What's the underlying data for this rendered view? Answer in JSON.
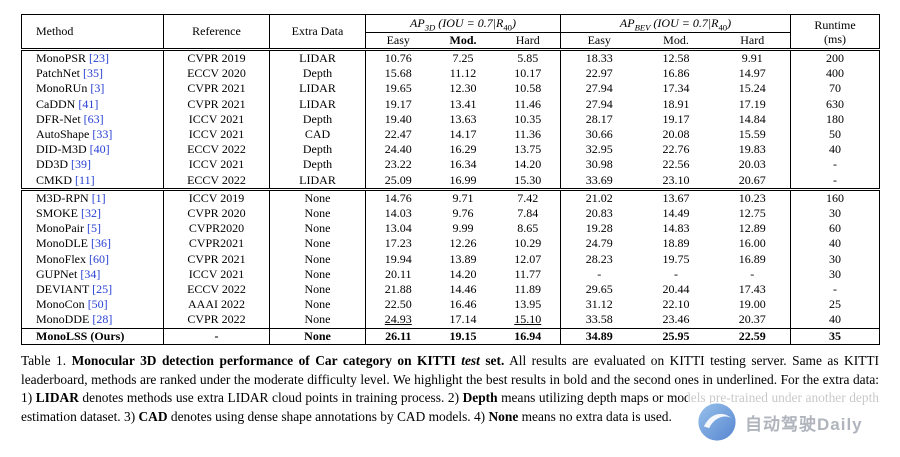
{
  "table": {
    "headers": {
      "method": "Method",
      "reference": "Reference",
      "extra_data": "Extra Data",
      "ap3d": {
        "name": "AP",
        "sub": "3D",
        "cond": " (IOU = 0.7|R",
        "cond_sub": "40",
        "close": ")"
      },
      "apbev": {
        "name": "AP",
        "sub": "BEV",
        "cond": " (IOU = 0.7|R",
        "cond_sub": "40",
        "close": ")"
      },
      "runtime_line1": "Runtime",
      "runtime_line2": "(ms)",
      "easy1": "Easy",
      "mod1": "Mod.",
      "hard1": "Hard",
      "easy2": "Easy",
      "mod2": "Mod.",
      "hard2": "Hard"
    },
    "rows": [
      {
        "m": "MonoPSR",
        "c": "[23]",
        "ref": "CVPR 2019",
        "ex": "LIDAR",
        "v": [
          "10.76",
          "7.25",
          "5.85",
          "18.33",
          "12.58",
          "9.91"
        ],
        "rt": "200"
      },
      {
        "m": "PatchNet",
        "c": "[35]",
        "ref": "ECCV 2020",
        "ex": "Depth",
        "v": [
          "15.68",
          "11.12",
          "10.17",
          "22.97",
          "16.86",
          "14.97"
        ],
        "rt": "400"
      },
      {
        "m": "MonoRUn",
        "c": "[3]",
        "ref": "CVPR 2021",
        "ex": "LIDAR",
        "v": [
          "19.65",
          "12.30",
          "10.58",
          "27.94",
          "17.34",
          "15.24"
        ],
        "rt": "70"
      },
      {
        "m": "CaDDN",
        "c": "[41]",
        "ref": "CVPR 2021",
        "ex": "LIDAR",
        "v": [
          "19.17",
          "13.41",
          "11.46",
          "27.94",
          "18.91",
          "17.19"
        ],
        "rt": "630"
      },
      {
        "m": "DFR-Net",
        "c": "[63]",
        "ref": "ICCV 2021",
        "ex": "Depth",
        "v": [
          "19.40",
          "13.63",
          "10.35",
          "28.17",
          "19.17",
          "14.84"
        ],
        "rt": "180"
      },
      {
        "m": "AutoShape",
        "c": "[33]",
        "ref": "ICCV 2021",
        "ex": "CAD",
        "v": [
          "22.47",
          "14.17",
          "11.36",
          "30.66",
          "20.08",
          "15.59"
        ],
        "rt": "50"
      },
      {
        "m": "DID-M3D",
        "c": "[40]",
        "ref": "ECCV 2022",
        "ex": "Depth",
        "v": [
          "24.40",
          "16.29",
          "13.75",
          "32.95",
          "22.76",
          "19.83"
        ],
        "rt": "40"
      },
      {
        "m": "DD3D",
        "c": "[39]",
        "ref": "ICCV 2021",
        "ex": "Depth",
        "v": [
          "23.22",
          "16.34",
          "14.20",
          "30.98",
          "22.56",
          "20.03"
        ],
        "rt": "-"
      },
      {
        "m": "CMKD",
        "c": "[11]",
        "ref": "ECCV 2022",
        "ex": "LIDAR",
        "v": [
          "25.09",
          "16.99",
          "15.30",
          "33.69",
          "23.10",
          "20.67"
        ],
        "rt": "-"
      },
      {
        "m": "M3D-RPN",
        "c": "[1]",
        "ref": "ICCV 2019",
        "ex": "None",
        "v": [
          "14.76",
          "9.71",
          "7.42",
          "21.02",
          "13.67",
          "10.23"
        ],
        "rt": "160",
        "sep": "double"
      },
      {
        "m": "SMOKE",
        "c": "[32]",
        "ref": "CVPR 2020",
        "ex": "None",
        "v": [
          "14.03",
          "9.76",
          "7.84",
          "20.83",
          "14.49",
          "12.75"
        ],
        "rt": "30"
      },
      {
        "m": "MonoPair",
        "c": "[5]",
        "ref": "CVPR2020",
        "ex": "None",
        "v": [
          "13.04",
          "9.99",
          "8.65",
          "19.28",
          "14.83",
          "12.89"
        ],
        "rt": "60"
      },
      {
        "m": "MonoDLE",
        "c": "[36]",
        "ref": "CVPR2021",
        "ex": "None",
        "v": [
          "17.23",
          "12.26",
          "10.29",
          "24.79",
          "18.89",
          "16.00"
        ],
        "rt": "40"
      },
      {
        "m": "MonoFlex",
        "c": "[60]",
        "ref": "CVPR 2021",
        "ex": "None",
        "v": [
          "19.94",
          "13.89",
          "12.07",
          "28.23",
          "19.75",
          "16.89"
        ],
        "rt": "30"
      },
      {
        "m": "GUPNet",
        "c": "[34]",
        "ref": "ICCV 2021",
        "ex": "None",
        "v": [
          "20.11",
          "14.20",
          "11.77",
          "-",
          "-",
          "-"
        ],
        "rt": "30"
      },
      {
        "m": "DEVIANT",
        "c": "[25]",
        "ref": "ECCV 2022",
        "ex": "None",
        "v": [
          "21.88",
          "14.46",
          "11.89",
          "29.65",
          "20.44",
          "17.43"
        ],
        "rt": "-"
      },
      {
        "m": "MonoCon",
        "c": "[50]",
        "ref": "AAAI 2022",
        "ex": "None",
        "v": [
          "22.50",
          "16.46",
          "13.95",
          "31.12",
          "22.10",
          "19.00"
        ],
        "rt": "25"
      },
      {
        "m": "MonoDDE",
        "c": "[28]",
        "ref": "CVPR 2022",
        "ex": "None",
        "v": [
          "24.93",
          "17.14",
          "15.10",
          "33.58",
          "23.46",
          "20.37"
        ],
        "rt": "40",
        "u": [
          0,
          2
        ]
      },
      {
        "m": "MonoLSS (Ours)",
        "c": "",
        "ref": "-",
        "ex": "None",
        "v": [
          "26.11",
          "19.15",
          "16.94",
          "34.89",
          "25.95",
          "22.59"
        ],
        "rt": "35",
        "bold": true,
        "sep": "single"
      }
    ]
  },
  "caption": {
    "segments": [
      {
        "t": "Table 1.  ",
        "b": false
      },
      {
        "t": "Monocular 3D detection performance of Car category on KITTI ",
        "b": true
      },
      {
        "t": "test",
        "b": true,
        "i": true
      },
      {
        "t": " set.",
        "b": true
      },
      {
        "t": "  All results are evaluated on KITTI testing server. Same as KITTI leaderboard, methods are ranked under the moderate difficulty level. We highlight the best results in bold and the second ones in underlined. For the extra data: 1) ",
        "b": false
      },
      {
        "t": "LIDAR",
        "b": true
      },
      {
        "t": " denotes methods use extra LIDAR cloud points in training process. 2) ",
        "b": false
      },
      {
        "t": "Depth",
        "b": true
      },
      {
        "t": " means utilizing depth maps or models pre-trained under another depth estimation dataset. 3) ",
        "b": false
      },
      {
        "t": "CAD",
        "b": true
      },
      {
        "t": " denotes using dense shape annotations by CAD models. 4) ",
        "b": false
      },
      {
        "t": "None",
        "b": true
      },
      {
        "t": " means no extra data is used.",
        "b": false
      }
    ]
  },
  "watermark": {
    "text": "自动驾驶Daily"
  },
  "colors": {
    "cite": "#2840d4",
    "logo_dark": "#2d66c4",
    "logo_light": "#7fb3e8"
  }
}
